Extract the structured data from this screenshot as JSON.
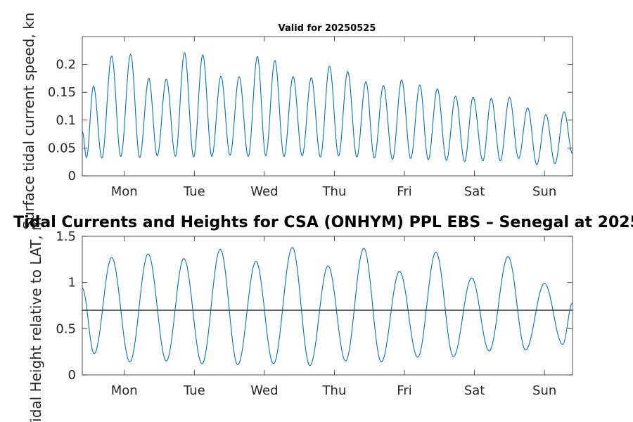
{
  "figure": {
    "title": "Tidal Currents and Heights for CSA (ONHYM) PPL EBS  – Senegal at 2025"
  },
  "chart_data": [
    {
      "type": "line",
      "title": "Valid for 20250525",
      "ylabel": "Surface tidal current speed, kn",
      "xlabel": "",
      "xlim": [
        0,
        7
      ],
      "ylim": [
        0,
        0.25
      ],
      "yticks": [
        0,
        0.05,
        0.1,
        0.15,
        0.2
      ],
      "ytick_labels": [
        "0",
        "0.05",
        "0.1",
        "0.15",
        "0.2"
      ],
      "xticks": [
        0.6,
        1.6,
        2.6,
        3.6,
        4.6,
        5.6,
        6.6
      ],
      "xtick_labels": [
        "Mon",
        "Tue",
        "Wed",
        "Thu",
        "Fri",
        "Sat",
        "Sun"
      ],
      "grid": false,
      "line_color": "#0072BD",
      "series": [
        {
          "extrema": [
            [
              0,
              0.08
            ],
            [
              0.06,
              0.033
            ],
            [
              0.16,
              0.161
            ],
            [
              0.28,
              0.032
            ],
            [
              0.42,
              0.215
            ],
            [
              0.55,
              0.035
            ],
            [
              0.69,
              0.218
            ],
            [
              0.82,
              0.033
            ],
            [
              0.95,
              0.175
            ],
            [
              1.07,
              0.036
            ],
            [
              1.2,
              0.174
            ],
            [
              1.33,
              0.035
            ],
            [
              1.46,
              0.221
            ],
            [
              1.59,
              0.034
            ],
            [
              1.72,
              0.217
            ],
            [
              1.85,
              0.035
            ],
            [
              1.98,
              0.179
            ],
            [
              2.11,
              0.037
            ],
            [
              2.24,
              0.178
            ],
            [
              2.37,
              0.035
            ],
            [
              2.5,
              0.214
            ],
            [
              2.62,
              0.036
            ],
            [
              2.75,
              0.207
            ],
            [
              2.88,
              0.035
            ],
            [
              3.01,
              0.178
            ],
            [
              3.14,
              0.036
            ],
            [
              3.27,
              0.176
            ],
            [
              3.4,
              0.034
            ],
            [
              3.53,
              0.197
            ],
            [
              3.66,
              0.036
            ],
            [
              3.79,
              0.187
            ],
            [
              3.92,
              0.034
            ],
            [
              4.05,
              0.169
            ],
            [
              4.17,
              0.032
            ],
            [
              4.3,
              0.162
            ],
            [
              4.43,
              0.03
            ],
            [
              4.56,
              0.172
            ],
            [
              4.69,
              0.031
            ],
            [
              4.82,
              0.163
            ],
            [
              4.94,
              0.029
            ],
            [
              5.07,
              0.156
            ],
            [
              5.2,
              0.028
            ],
            [
              5.33,
              0.143
            ],
            [
              5.46,
              0.026
            ],
            [
              5.58,
              0.141
            ],
            [
              5.72,
              0.027
            ],
            [
              5.84,
              0.139
            ],
            [
              5.97,
              0.027
            ],
            [
              6.1,
              0.141
            ],
            [
              6.23,
              0.031
            ],
            [
              6.36,
              0.122
            ],
            [
              6.49,
              0.02
            ],
            [
              6.62,
              0.11
            ],
            [
              6.75,
              0.022
            ],
            [
              6.88,
              0.115
            ],
            [
              7,
              0.04
            ]
          ]
        }
      ]
    },
    {
      "type": "line",
      "title": "",
      "ylabel": "Tidal Height relative to LAT, m",
      "xlabel": "",
      "xlim": [
        0,
        7
      ],
      "ylim": [
        0,
        1.5
      ],
      "yticks": [
        0,
        0.5,
        1,
        1.5
      ],
      "ytick_labels": [
        "0",
        "0.5",
        "1",
        "1.5"
      ],
      "xticks": [
        0.6,
        1.6,
        2.6,
        3.6,
        4.6,
        5.6,
        6.6
      ],
      "xtick_labels": [
        "Mon",
        "Tue",
        "Wed",
        "Thu",
        "Fri",
        "Sat",
        "Sun"
      ],
      "grid": false,
      "line_color": "#0072BD",
      "reference_line": {
        "y": 0.7,
        "color": "#000000"
      },
      "series": [
        {
          "extrema": [
            [
              0,
              0.94
            ],
            [
              0.17,
              0.23
            ],
            [
              0.42,
              1.27
            ],
            [
              0.68,
              0.14
            ],
            [
              0.94,
              1.31
            ],
            [
              1.2,
              0.15
            ],
            [
              1.45,
              1.26
            ],
            [
              1.71,
              0.12
            ],
            [
              1.97,
              1.36
            ],
            [
              2.22,
              0.11
            ],
            [
              2.48,
              1.23
            ],
            [
              2.73,
              0.12
            ],
            [
              3,
              1.38
            ],
            [
              3.25,
              0.1
            ],
            [
              3.51,
              1.18
            ],
            [
              3.76,
              0.15
            ],
            [
              4.02,
              1.37
            ],
            [
              4.27,
              0.14
            ],
            [
              4.53,
              1.12
            ],
            [
              4.79,
              0.19
            ],
            [
              5.05,
              1.33
            ],
            [
              5.3,
              0.2
            ],
            [
              5.56,
              1.05
            ],
            [
              5.81,
              0.26
            ],
            [
              6.08,
              1.28
            ],
            [
              6.33,
              0.27
            ],
            [
              6.6,
              0.99
            ],
            [
              6.86,
              0.33
            ],
            [
              7,
              0.78
            ]
          ]
        }
      ]
    }
  ]
}
